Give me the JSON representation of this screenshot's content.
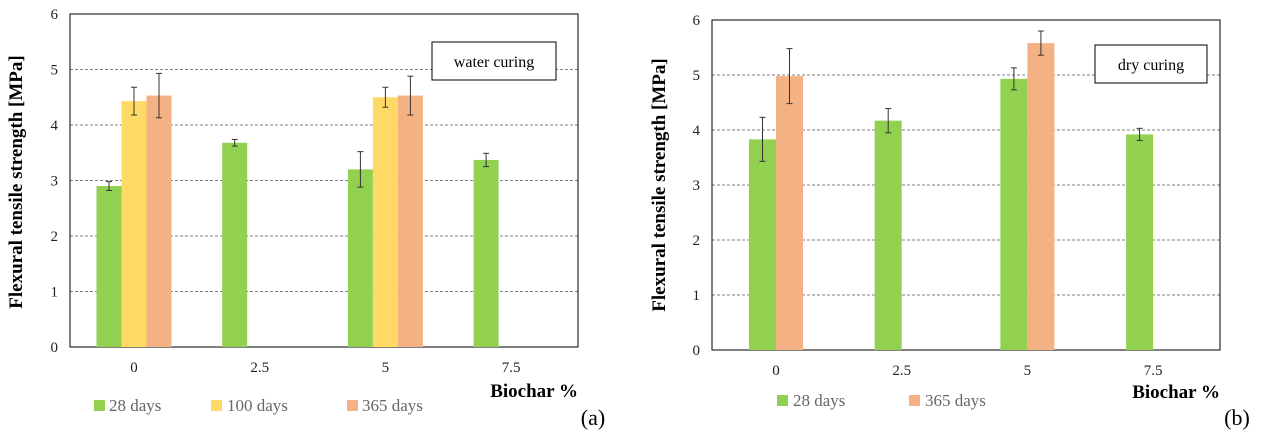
{
  "chart_data": [
    {
      "type": "bar",
      "panel_label": "(a)",
      "annotation": "water curing",
      "xlabel": "Biochar %",
      "ylabel": "Flexural tensile  strength [MPa]",
      "categories": [
        "0",
        "2.5",
        "5",
        "7.5"
      ],
      "ylim": [
        0,
        6
      ],
      "yticks": [
        "0",
        "1",
        "2",
        "3",
        "4",
        "5",
        "6"
      ],
      "grid": true,
      "legend_position": "bottom",
      "series": [
        {
          "name": "28 days",
          "color": "#92d050",
          "values": [
            2.9,
            3.68,
            3.2,
            3.37
          ],
          "errors": [
            0.08,
            0.06,
            0.32,
            0.12
          ]
        },
        {
          "name": "100 days",
          "color": "#ffd966",
          "values": [
            4.43,
            null,
            4.5,
            null
          ],
          "errors": [
            0.25,
            null,
            0.18,
            null
          ]
        },
        {
          "name": "365 days",
          "color": "#f4b183",
          "values": [
            4.53,
            null,
            4.53,
            null
          ],
          "errors": [
            0.4,
            null,
            0.35,
            null
          ]
        }
      ]
    },
    {
      "type": "bar",
      "panel_label": "(b)",
      "annotation": "dry curing",
      "xlabel": "Biochar %",
      "ylabel": "Flexural tensile  strength [MPa]",
      "categories": [
        "0",
        "2.5",
        "5",
        "7.5"
      ],
      "ylim": [
        0,
        6
      ],
      "yticks": [
        "0",
        "1",
        "2",
        "3",
        "4",
        "5",
        "6"
      ],
      "grid": true,
      "legend_position": "bottom",
      "series": [
        {
          "name": "28 days",
          "color": "#92d050",
          "values": [
            3.83,
            4.17,
            4.93,
            3.92
          ],
          "errors": [
            0.4,
            0.22,
            0.2,
            0.11
          ]
        },
        {
          "name": "365 days",
          "color": "#f4b183",
          "values": [
            4.98,
            null,
            5.58,
            null
          ],
          "errors": [
            0.5,
            null,
            0.22,
            null
          ]
        }
      ]
    }
  ]
}
